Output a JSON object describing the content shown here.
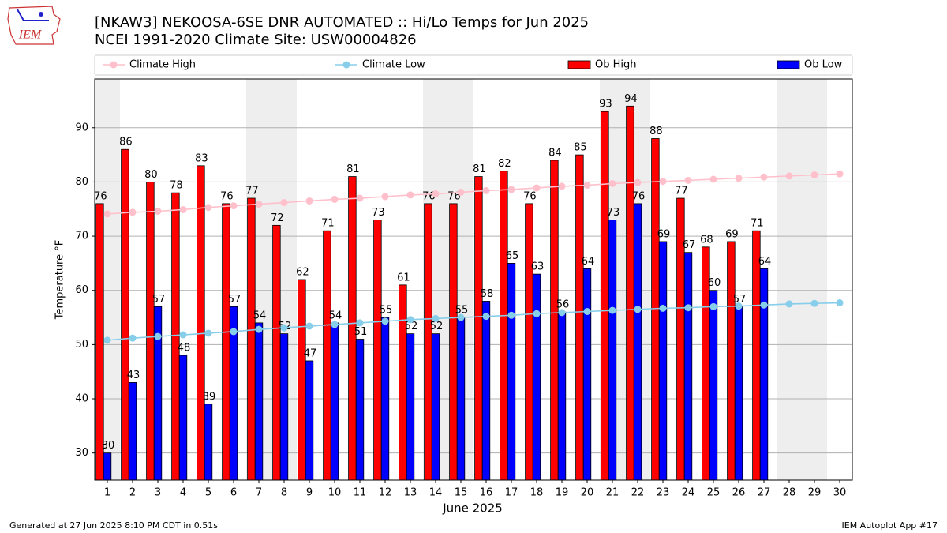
{
  "chart_data": {
    "type": "bar",
    "title": "[NKAW3] NEKOOSA-6SE DNR AUTOMATED :: Hi/Lo Temps for Jun 2025",
    "subtitle": "NCEI 1991-2020 Climate Site: USW00004826",
    "logo_text": "IEM",
    "x_label": "June 2025",
    "y_label": "Temperature °F",
    "footer_left": "Generated at 27 Jun 2025 8:10 PM CDT in 0.51s",
    "footer_right": "IEM Autoplot App #17",
    "x": [
      1,
      2,
      3,
      4,
      5,
      6,
      7,
      8,
      9,
      10,
      11,
      12,
      13,
      14,
      15,
      16,
      17,
      18,
      19,
      20,
      21,
      22,
      23,
      24,
      25,
      26,
      27,
      28,
      29,
      30
    ],
    "xlim": [
      0.5,
      30.5
    ],
    "xticks": [
      1,
      2,
      3,
      4,
      5,
      6,
      7,
      8,
      9,
      10,
      11,
      12,
      13,
      14,
      15,
      16,
      17,
      18,
      19,
      20,
      21,
      22,
      23,
      24,
      25,
      26,
      27,
      28,
      29,
      30
    ],
    "ylim": [
      25,
      99
    ],
    "yticks": [
      30,
      40,
      50,
      60,
      70,
      80,
      90
    ],
    "grid": true,
    "legend": "top",
    "shaded_x": [
      1,
      7,
      8,
      14,
      15,
      21,
      22,
      28,
      29
    ],
    "shade_color": "#eeeeee",
    "series": [
      {
        "name": "Climate High",
        "kind": "line",
        "color": "#ffc0cb",
        "values": [
          74.1,
          74.4,
          74.6,
          74.9,
          75.3,
          75.6,
          75.9,
          76.2,
          76.5,
          76.8,
          77.0,
          77.3,
          77.6,
          77.8,
          78.1,
          78.4,
          78.6,
          78.9,
          79.2,
          79.4,
          79.7,
          79.9,
          80.1,
          80.3,
          80.5,
          80.7,
          80.9,
          81.1,
          81.3,
          81.5
        ]
      },
      {
        "name": "Climate Low",
        "kind": "line",
        "color": "#87ceeb",
        "values": [
          50.8,
          51.2,
          51.5,
          51.8,
          52.1,
          52.4,
          52.8,
          53.1,
          53.4,
          53.7,
          54.0,
          54.3,
          54.6,
          54.8,
          55.0,
          55.2,
          55.4,
          55.7,
          55.9,
          56.1,
          56.3,
          56.5,
          56.7,
          56.8,
          57.0,
          57.1,
          57.3,
          57.5,
          57.6,
          57.7
        ]
      },
      {
        "name": "Ob High",
        "kind": "bar",
        "color": "#ff0000",
        "values": [
          76,
          86,
          80,
          78,
          83,
          76,
          77,
          72,
          62,
          71,
          81,
          73,
          61,
          76,
          76,
          81,
          82,
          76,
          84,
          85,
          93,
          94,
          88,
          77,
          68,
          69,
          71,
          null,
          null,
          null
        ]
      },
      {
        "name": "Ob Low",
        "kind": "bar",
        "color": "#0000ff",
        "values": [
          30,
          43,
          57,
          48,
          39,
          57,
          54,
          52,
          47,
          54,
          51,
          55,
          52,
          52,
          55,
          58,
          65,
          63,
          56,
          64,
          73,
          76,
          69,
          67,
          60,
          57,
          64,
          null,
          null,
          null
        ]
      }
    ]
  }
}
